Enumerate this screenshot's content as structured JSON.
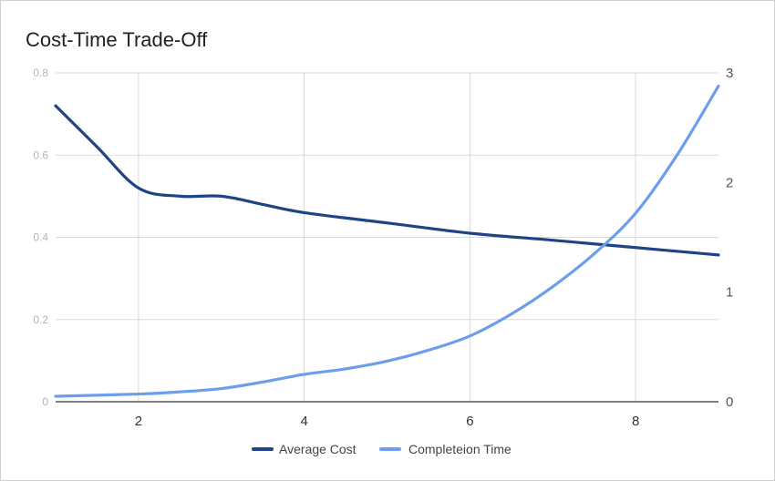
{
  "chart_data": {
    "type": "line",
    "title": "Cost-Time Trade-Off",
    "xlabel": "",
    "ylabel_left": "",
    "ylabel_right": "",
    "xlim": [
      1,
      9
    ],
    "ylim_left": [
      0,
      0.8
    ],
    "ylim_right": [
      0,
      3
    ],
    "x_ticks": [
      2,
      4,
      6,
      8
    ],
    "y_left_ticks": [
      0,
      0.2,
      0.4,
      0.6,
      0.8
    ],
    "y_right_ticks": [
      0,
      1,
      2,
      3
    ],
    "grid": true,
    "legend_position": "bottom",
    "series": [
      {
        "name": "Average Cost",
        "axis": "left",
        "color": "#1f4485",
        "x": [
          1,
          1.5,
          2,
          2.5,
          3,
          3.5,
          4,
          5,
          6,
          7,
          8,
          9
        ],
        "y": [
          0.72,
          0.62,
          0.52,
          0.5,
          0.5,
          0.48,
          0.46,
          0.435,
          0.41,
          0.393,
          0.375,
          0.357
        ]
      },
      {
        "name": "Completeion Time",
        "axis": "right",
        "color": "#6d9eeb",
        "x": [
          1,
          2,
          2.5,
          3,
          3.5,
          4,
          4.5,
          5,
          5.5,
          6,
          6.5,
          7,
          7.5,
          8,
          8.5,
          9
        ],
        "y": [
          0.05,
          0.07,
          0.09,
          0.12,
          0.18,
          0.25,
          0.3,
          0.37,
          0.47,
          0.6,
          0.8,
          1.05,
          1.35,
          1.72,
          2.25,
          2.88
        ]
      }
    ]
  }
}
